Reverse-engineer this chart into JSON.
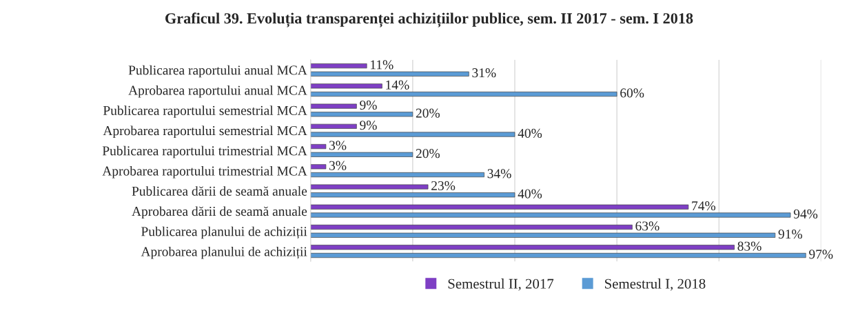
{
  "chart_data": {
    "type": "bar",
    "orientation": "horizontal",
    "title": "Graficul 39. Evoluția transparenței achizițiilor publice, sem. II 2017 - sem. I 2018",
    "categories": [
      "Publicarea raportului anual MCA",
      "Aprobarea raportului anual MCA",
      "Publicarea raportului semestrial MCA",
      "Aprobarea raportului semestrial MCA",
      "Publicarea raportului trimestrial MCA",
      "Aprobarea raportului trimestrial MCA",
      "Publicarea dării de seamă anuale",
      "Aprobarea dării de seamă anuale",
      "Publicarea planului de achiziții",
      "Aprobarea planului de achiziții"
    ],
    "series": [
      {
        "name": "Semestrul II, 2017",
        "color": "#7e3fc4",
        "values": [
          11,
          14,
          9,
          9,
          3,
          3,
          23,
          74,
          63,
          83
        ],
        "value_labels": [
          "11%",
          "14%",
          "9%",
          "9%",
          "3%",
          "3%",
          "23%",
          "74%",
          "63%",
          "83%"
        ]
      },
      {
        "name": "Semestrul I, 2018",
        "color": "#5b9bd5",
        "values": [
          31,
          60,
          20,
          40,
          20,
          34,
          40,
          94,
          91,
          97
        ],
        "value_labels": [
          "31%",
          "60%",
          "20%",
          "40%",
          "20%",
          "34%",
          "40%",
          "94%",
          "91%",
          "97%"
        ]
      }
    ],
    "xlim": [
      0,
      100
    ],
    "xticks": [
      {
        "value": 0,
        "label": null
      },
      {
        "value": 20,
        "label": null
      },
      {
        "value": 40,
        "label": null
      },
      {
        "value": 60,
        "label": null
      },
      {
        "value": 80,
        "label": null
      },
      {
        "value": 100,
        "label": null
      }
    ],
    "tick_labels": "y",
    "grid": "x",
    "legend": "bottom"
  }
}
